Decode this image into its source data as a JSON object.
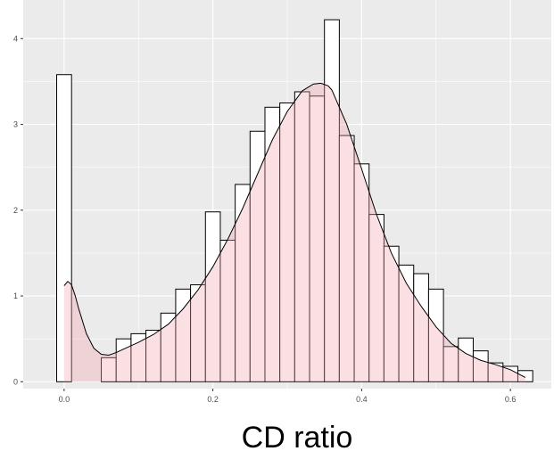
{
  "chart_data": {
    "type": "bar",
    "subtype": "histogram with density curve overlay",
    "title": "",
    "xlabel": "CD ratio",
    "ylabel": "",
    "xlim": [
      -0.055,
      0.655
    ],
    "ylim": [
      -0.08,
      4.45
    ],
    "x_ticks": [
      0.0,
      0.2,
      0.4,
      0.6
    ],
    "x_tick_labels": [
      "0.0",
      "0.2",
      "0.4",
      "0.6"
    ],
    "y_ticks": [
      0,
      1,
      2,
      3,
      4
    ],
    "y_tick_labels": [
      "0",
      "1",
      "2",
      "3",
      "4"
    ],
    "grid": true,
    "legend": "none",
    "bin_width": 0.02,
    "bins": [
      {
        "x0": -0.01,
        "x1": 0.01,
        "value": 3.58
      },
      {
        "x0": 0.01,
        "x1": 0.03,
        "value": 0.0
      },
      {
        "x0": 0.03,
        "x1": 0.05,
        "value": 0.0
      },
      {
        "x0": 0.05,
        "x1": 0.07,
        "value": 0.28
      },
      {
        "x0": 0.07,
        "x1": 0.09,
        "value": 0.5
      },
      {
        "x0": 0.09,
        "x1": 0.11,
        "value": 0.56
      },
      {
        "x0": 0.11,
        "x1": 0.13,
        "value": 0.6
      },
      {
        "x0": 0.13,
        "x1": 0.15,
        "value": 0.8
      },
      {
        "x0": 0.15,
        "x1": 0.17,
        "value": 1.08
      },
      {
        "x0": 0.17,
        "x1": 0.19,
        "value": 1.13
      },
      {
        "x0": 0.19,
        "x1": 0.21,
        "value": 1.98
      },
      {
        "x0": 0.21,
        "x1": 0.23,
        "value": 1.65
      },
      {
        "x0": 0.23,
        "x1": 0.25,
        "value": 2.3
      },
      {
        "x0": 0.25,
        "x1": 0.27,
        "value": 2.92
      },
      {
        "x0": 0.27,
        "x1": 0.29,
        "value": 3.2
      },
      {
        "x0": 0.29,
        "x1": 0.31,
        "value": 3.25
      },
      {
        "x0": 0.31,
        "x1": 0.33,
        "value": 3.38
      },
      {
        "x0": 0.33,
        "x1": 0.35,
        "value": 3.33
      },
      {
        "x0": 0.35,
        "x1": 0.37,
        "value": 4.22
      },
      {
        "x0": 0.37,
        "x1": 0.39,
        "value": 2.87
      },
      {
        "x0": 0.39,
        "x1": 0.41,
        "value": 2.54
      },
      {
        "x0": 0.41,
        "x1": 0.43,
        "value": 1.95
      },
      {
        "x0": 0.43,
        "x1": 0.45,
        "value": 1.58
      },
      {
        "x0": 0.45,
        "x1": 0.47,
        "value": 1.36
      },
      {
        "x0": 0.47,
        "x1": 0.49,
        "value": 1.26
      },
      {
        "x0": 0.49,
        "x1": 0.51,
        "value": 1.08
      },
      {
        "x0": 0.51,
        "x1": 0.53,
        "value": 0.41
      },
      {
        "x0": 0.53,
        "x1": 0.55,
        "value": 0.51
      },
      {
        "x0": 0.55,
        "x1": 0.57,
        "value": 0.36
      },
      {
        "x0": 0.57,
        "x1": 0.59,
        "value": 0.22
      },
      {
        "x0": 0.59,
        "x1": 0.61,
        "value": 0.18
      },
      {
        "x0": 0.61,
        "x1": 0.63,
        "value": 0.13
      }
    ],
    "density_curve": {
      "x": [
        0.0,
        0.005,
        0.01,
        0.015,
        0.02,
        0.03,
        0.04,
        0.05,
        0.06,
        0.07,
        0.08,
        0.1,
        0.12,
        0.14,
        0.16,
        0.18,
        0.2,
        0.22,
        0.24,
        0.26,
        0.28,
        0.3,
        0.32,
        0.335,
        0.345,
        0.355,
        0.36,
        0.38,
        0.4,
        0.42,
        0.44,
        0.46,
        0.48,
        0.5,
        0.52,
        0.54,
        0.56,
        0.58,
        0.6,
        0.62
      ],
      "y": [
        1.12,
        1.17,
        1.13,
        1.0,
        0.84,
        0.56,
        0.39,
        0.32,
        0.31,
        0.34,
        0.38,
        0.46,
        0.55,
        0.67,
        0.85,
        1.07,
        1.34,
        1.66,
        2.02,
        2.42,
        2.82,
        3.15,
        3.39,
        3.47,
        3.48,
        3.45,
        3.4,
        3.0,
        2.48,
        1.95,
        1.5,
        1.15,
        0.88,
        0.64,
        0.45,
        0.33,
        0.25,
        0.2,
        0.14,
        0.05
      ]
    },
    "colors": {
      "panel_background": "#ebebeb",
      "grid_line": "#ffffff",
      "bar_fill": "#ffffff",
      "bar_outline": "#000000",
      "density_fill": "#f4a6ae",
      "density_fill_opacity": 0.35,
      "density_line": "#000000"
    }
  }
}
